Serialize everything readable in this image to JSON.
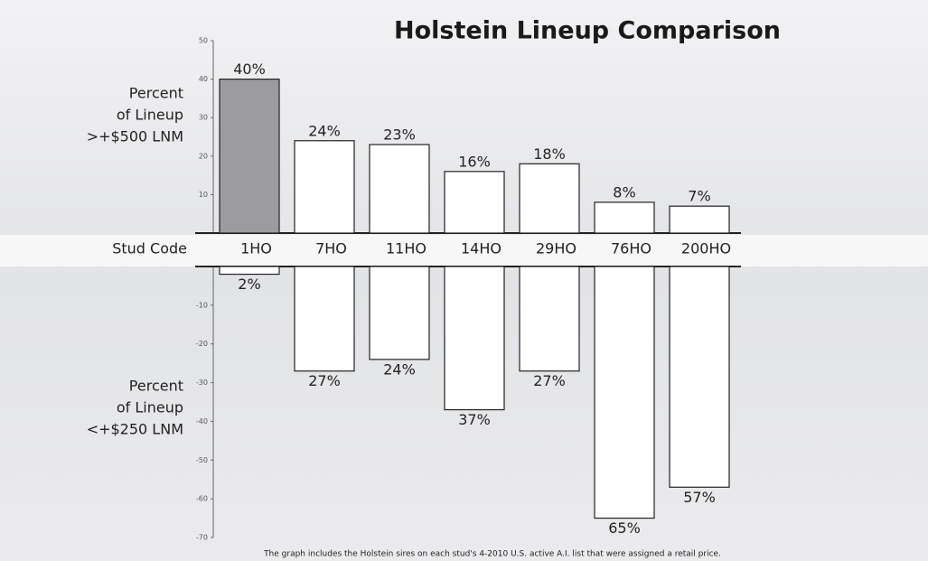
{
  "chart_data": [
    {
      "type": "bar",
      "title": "Holstein Lineup Comparison",
      "y_label": [
        "Percent",
        "of Lineup",
        ">+$500 LNM"
      ],
      "x_label": "Stud Code",
      "categories": [
        "1HO",
        "7HO",
        "11HO",
        "14HO",
        "29HO",
        "76HO",
        "200HO"
      ],
      "values": [
        40,
        24,
        23,
        16,
        18,
        8,
        7
      ],
      "value_labels": [
        "40%",
        "24%",
        "23%",
        "16%",
        "18%",
        "8%",
        "7%"
      ],
      "colors": [
        "#9c9c9e",
        "#ffffff",
        "#ffffff",
        "#ffffff",
        "#ffffff",
        "#ffffff",
        "#ffffff"
      ],
      "ylim": [
        0,
        50
      ],
      "yticks": [
        10,
        20,
        30,
        40,
        50
      ]
    },
    {
      "type": "bar",
      "y_label": [
        "Percent",
        "of Lineup",
        "<+$250 LNM"
      ],
      "values": [
        -2,
        -27,
        -24,
        -37,
        -27,
        -65,
        -57
      ],
      "value_labels": [
        "2%",
        "27%",
        "24%",
        "37%",
        "27%",
        "65%",
        "57%"
      ],
      "color": "#ffffff",
      "ylim": [
        -70,
        0
      ],
      "yticks": [
        -10,
        -20,
        -30,
        -40,
        -50,
        -60,
        -70
      ],
      "note": "The graph includes the Holstein sires on each stud's 4-2010 U.S. active A.I. list that were assigned a retail price."
    }
  ]
}
